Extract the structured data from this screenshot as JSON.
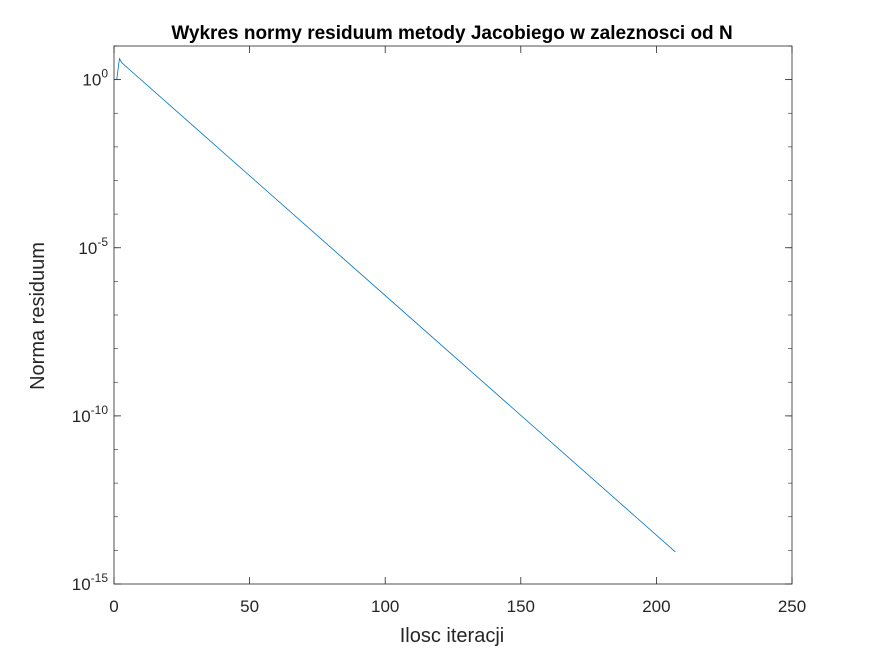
{
  "chart_data": {
    "type": "line",
    "title": "Wykres normy residuum metody Jacobiego w zaleznosci od N",
    "xlabel": "Ilosc iteracji",
    "ylabel": "Norma residuum",
    "xlim": [
      0,
      250
    ],
    "ylim": [
      1e-15,
      10
    ],
    "yscale": "log",
    "grid": false,
    "legend": "none",
    "xticks": [
      0,
      50,
      100,
      150,
      200,
      250
    ],
    "xtick_labels": [
      "0",
      "50",
      "100",
      "150",
      "200",
      "250"
    ],
    "yticks": [
      1,
      1e-05,
      1e-10,
      1e-15
    ],
    "ytick_labels": [
      {
        "base": "10",
        "exp": "0"
      },
      {
        "base": "10",
        "exp": "-5"
      },
      {
        "base": "10",
        "exp": "-10"
      },
      {
        "base": "10",
        "exp": "-15"
      }
    ],
    "series": [
      {
        "color": "#0072BD",
        "x": [
          1,
          2,
          3,
          207
        ],
        "y": [
          1.0,
          4.2,
          3.1,
          9e-15
        ]
      }
    ]
  }
}
